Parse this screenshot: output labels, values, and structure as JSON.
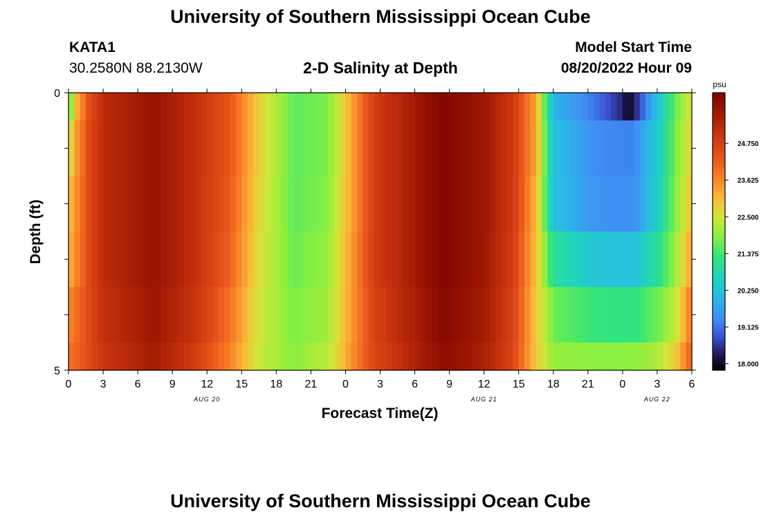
{
  "page": {
    "title": "University of Southern Mississippi Ocean Cube",
    "footer_title": "University of Southern Mississippi Ocean Cube"
  },
  "station": {
    "name": "KATA1",
    "coords": "30.2580N  88.2130W"
  },
  "model": {
    "label": "Model Start Time",
    "start": "08/20/2022 Hour 09"
  },
  "chart_data": {
    "type": "heatmap",
    "title": "2-D Salinity at Depth",
    "xlabel": "Forecast Time(Z)",
    "ylabel": "Depth (ft)",
    "x_hours": [
      0,
      54
    ],
    "x_tick_labels": [
      "0",
      "3",
      "6",
      "9",
      "12",
      "15",
      "18",
      "21",
      "0",
      "3",
      "6",
      "9",
      "12",
      "15",
      "18",
      "21",
      "0",
      "3",
      "6"
    ],
    "date_labels": [
      {
        "label": "AUG 20",
        "hour": 12
      },
      {
        "label": "AUG 21",
        "hour": 36
      },
      {
        "label": "AUG 22",
        "hour": 51
      }
    ],
    "ylim": [
      0,
      5
    ],
    "y_tick_labels": [
      "0",
      "5"
    ],
    "depth_rows": [
      {
        "from": 0.0,
        "to": 0.5
      },
      {
        "from": 0.5,
        "to": 1.5
      },
      {
        "from": 1.5,
        "to": 2.5
      },
      {
        "from": 2.5,
        "to": 3.5
      },
      {
        "from": 3.5,
        "to": 4.5
      },
      {
        "from": 4.5,
        "to": 5.0
      }
    ],
    "salinity_keyframes": [
      {
        "hour": 0.0,
        "values": [
          21.4,
          22.4,
          22.9,
          23.1,
          23.6,
          23.9
        ]
      },
      {
        "hour": 0.75,
        "values": [
          23.2,
          23.5,
          23.6,
          23.7,
          24.0,
          24.1
        ]
      },
      {
        "hour": 1.75,
        "values": [
          24.4,
          24.5,
          24.5,
          24.5,
          24.5,
          24.5
        ]
      },
      {
        "hour": 3.0,
        "values": [
          25.2,
          25.2,
          25.2,
          25.2,
          25.1,
          25.0
        ]
      },
      {
        "hour": 7.5,
        "values": [
          25.8,
          25.8,
          25.8,
          25.8,
          25.7,
          25.6
        ]
      },
      {
        "hour": 11.0,
        "values": [
          25.1,
          25.1,
          25.1,
          25.1,
          25.0,
          24.8
        ]
      },
      {
        "hour": 14.0,
        "values": [
          24.3,
          24.3,
          24.2,
          24.1,
          23.9,
          23.7
        ]
      },
      {
        "hour": 16.5,
        "values": [
          22.8,
          22.8,
          22.7,
          22.6,
          22.5,
          22.4
        ]
      },
      {
        "hour": 19.5,
        "values": [
          21.6,
          21.6,
          21.6,
          21.7,
          21.8,
          21.9
        ]
      },
      {
        "hour": 22.5,
        "values": [
          21.8,
          21.8,
          21.9,
          22.0,
          22.1,
          22.3
        ]
      },
      {
        "hour": 24.5,
        "values": [
          23.3,
          23.3,
          23.3,
          23.4,
          23.4,
          23.5
        ]
      },
      {
        "hour": 26.5,
        "values": [
          24.8,
          24.8,
          24.8,
          24.8,
          24.7,
          24.6
        ]
      },
      {
        "hour": 32.5,
        "values": [
          26.2,
          26.2,
          26.2,
          26.2,
          26.1,
          26.0
        ]
      },
      {
        "hour": 36.0,
        "values": [
          25.7,
          25.7,
          25.7,
          25.7,
          25.6,
          25.5
        ]
      },
      {
        "hour": 38.5,
        "values": [
          24.9,
          24.9,
          24.9,
          24.8,
          24.7,
          24.6
        ]
      },
      {
        "hour": 40.5,
        "values": [
          23.3,
          23.3,
          23.1,
          23.0,
          22.9,
          22.9
        ]
      },
      {
        "hour": 42.0,
        "values": [
          20.0,
          20.2,
          20.2,
          21.0,
          21.7,
          22.0
        ]
      },
      {
        "hour": 45.5,
        "values": [
          19.2,
          19.4,
          19.5,
          20.3,
          21.3,
          21.9
        ]
      },
      {
        "hour": 48.0,
        "values": [
          18.4,
          19.3,
          19.4,
          20.2,
          21.2,
          21.9
        ]
      },
      {
        "hour": 48.5,
        "values": [
          17.9,
          19.3,
          19.4,
          20.2,
          21.2,
          21.9
        ]
      },
      {
        "hour": 49.0,
        "values": [
          18.3,
          19.3,
          19.4,
          20.2,
          21.2,
          21.9
        ]
      },
      {
        "hour": 51.0,
        "values": [
          20.2,
          20.4,
          20.5,
          21.0,
          21.7,
          22.2
        ]
      },
      {
        "hour": 52.5,
        "values": [
          21.6,
          21.7,
          21.8,
          22.0,
          22.3,
          22.8
        ]
      },
      {
        "hour": 54.0,
        "values": [
          22.6,
          22.8,
          23.0,
          23.4,
          23.9,
          24.2
        ]
      }
    ],
    "colorbar": {
      "unit": "psu",
      "min": 17.8,
      "max": 26.3,
      "tick_labels": [
        "24.750",
        "23.625",
        "22.500",
        "21.375",
        "20.250",
        "19.125",
        "18.000"
      ],
      "tick_values": [
        24.75,
        23.625,
        22.5,
        21.375,
        20.25,
        19.125,
        18.0
      ]
    },
    "palette": [
      {
        "v": 17.8,
        "c": "#000000"
      },
      {
        "v": 18.3,
        "c": "#221a5c"
      },
      {
        "v": 18.8,
        "c": "#3b4fd0"
      },
      {
        "v": 19.4,
        "c": "#3f8ff4"
      },
      {
        "v": 20.0,
        "c": "#2ab8e8"
      },
      {
        "v": 20.6,
        "c": "#1fd2bf"
      },
      {
        "v": 21.3,
        "c": "#33e57a"
      },
      {
        "v": 21.9,
        "c": "#8aef3f"
      },
      {
        "v": 22.5,
        "c": "#d2e637"
      },
      {
        "v": 23.1,
        "c": "#fbb938"
      },
      {
        "v": 23.7,
        "c": "#f98127"
      },
      {
        "v": 24.3,
        "c": "#e8541a"
      },
      {
        "v": 25.0,
        "c": "#c9340e"
      },
      {
        "v": 25.7,
        "c": "#9e1703"
      },
      {
        "v": 26.3,
        "c": "#7a0300"
      }
    ]
  }
}
